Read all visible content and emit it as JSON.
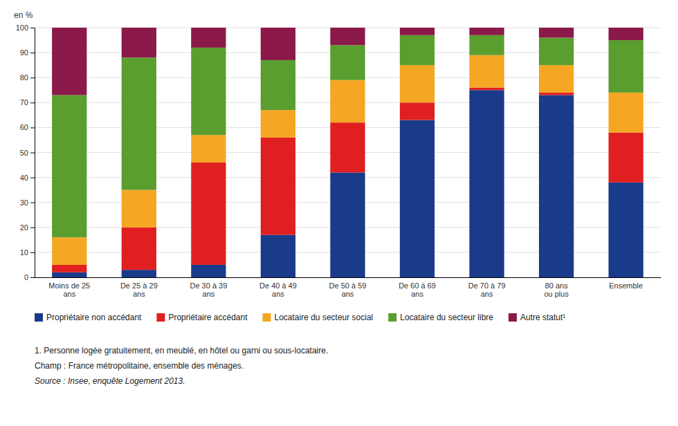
{
  "chart_data": {
    "type": "bar",
    "stacked": true,
    "categories": [
      "Moins de 25\nans",
      "De 25 à 29\nans",
      "De 30 à 39\nans",
      "De 40 à 49\nans",
      "De 50 à 59\nans",
      "De 60 à 69\nans",
      "De 70 à 79\nans",
      "80 ans\nou plus",
      "Ensemble"
    ],
    "series": [
      {
        "name": "Propriétaire non accédant",
        "color": "#1a3a8a",
        "values": [
          2,
          3,
          5,
          17,
          42,
          63,
          75,
          73,
          38
        ]
      },
      {
        "name": "Propriétaire accédant",
        "color": "#e02020",
        "values": [
          3,
          17,
          41,
          39,
          20,
          7,
          1,
          1,
          20
        ]
      },
      {
        "name": "Locataire du secteur social",
        "color": "#f5a623",
        "values": [
          11,
          15,
          11,
          11,
          17,
          15,
          13,
          11,
          16
        ]
      },
      {
        "name": "Locataire du secteur libre",
        "color": "#5a9e2f",
        "values": [
          57,
          53,
          35,
          20,
          14,
          12,
          8,
          11,
          21
        ]
      },
      {
        "name": "Autre statut¹",
        "color": "#8b1a4a",
        "values": [
          27,
          12,
          8,
          13,
          7,
          3,
          3,
          4,
          5
        ]
      }
    ],
    "ylabel": "en %",
    "ylim": [
      0,
      100
    ],
    "yticks": [
      0,
      10,
      20,
      30,
      40,
      50,
      60,
      70,
      80,
      90,
      100
    ],
    "grid": true,
    "legend": "bottom",
    "annotations": [
      "1. Personne logée gratuitement, en meublé, en hôtel ou garni ou sous-locataire.",
      "Champ : France métropolitaine, ensemble des ménages.",
      "Source : Insee, enquête Logement 2013."
    ]
  }
}
